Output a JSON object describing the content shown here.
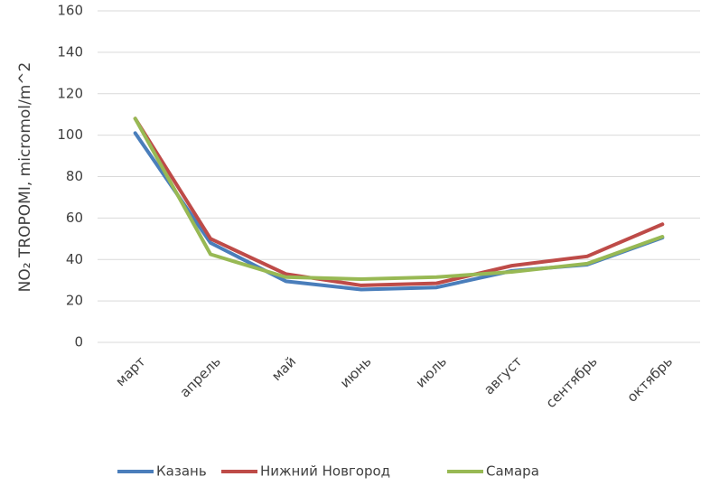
{
  "chart_data": {
    "type": "line",
    "ylabel": "NO₂ TROPOMI, micromol/m^2",
    "categories": [
      "март",
      "апрель",
      "май",
      "июнь",
      "июль",
      "август",
      "сентябрь",
      "октябрь"
    ],
    "series": [
      {
        "name": "Казань",
        "color": "#4a7ebb",
        "values": [
          101,
          48,
          29.5,
          25.5,
          26.5,
          34.5,
          37.5,
          50.5
        ]
      },
      {
        "name": "Нижний Новгород",
        "color": "#be4b48",
        "values": [
          108,
          50,
          33,
          27.5,
          28.5,
          37,
          41.5,
          57
        ]
      },
      {
        "name": "Самара",
        "color": "#98b954",
        "values": [
          108,
          42.5,
          31.5,
          30.5,
          31.5,
          34,
          38,
          51
        ]
      }
    ],
    "ylim": [
      0,
      160
    ],
    "yticks": [
      0,
      20,
      40,
      60,
      80,
      100,
      120,
      140,
      160
    ],
    "grid": true,
    "legend": "bottom"
  }
}
